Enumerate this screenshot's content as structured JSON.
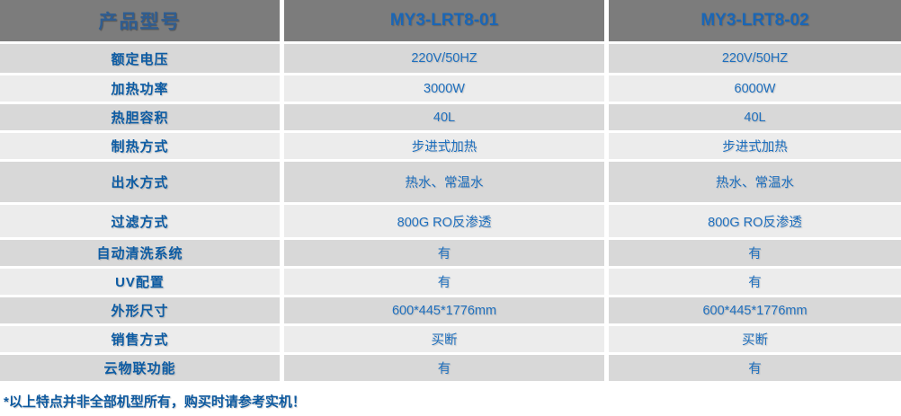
{
  "table": {
    "header": {
      "product_model_label": "产品型号",
      "model_1": "MY3-LRT8-01",
      "model_2": "MY3-LRT8-02"
    },
    "rows": [
      {
        "label": "额定电压",
        "v1": "220V/50HZ",
        "v2": "220V/50HZ"
      },
      {
        "label": "加热功率",
        "v1": "3000W",
        "v2": "6000W"
      },
      {
        "label": "热胆容积",
        "v1": "40L",
        "v2": "40L"
      },
      {
        "label": "制热方式",
        "v1": "步进式加热",
        "v2": "步进式加热"
      },
      {
        "label": "出水方式",
        "v1": "热水、常温水",
        "v2": "热水、常温水"
      },
      {
        "label": "过滤方式",
        "v1": "800G RO反渗透",
        "v2": "800G RO反渗透"
      },
      {
        "label": "自动清洗系统",
        "v1": "有",
        "v2": "有"
      },
      {
        "label": "UV配置",
        "v1": "有",
        "v2": "有"
      },
      {
        "label": "外形尺寸",
        "v1": "600*445*1776mm",
        "v2": "600*445*1776mm"
      },
      {
        "label": "销售方式",
        "v1": "买断",
        "v2": "买断"
      },
      {
        "label": "云物联功能",
        "v1": "有",
        "v2": "有"
      }
    ],
    "footnote": "*以上特点并非全部机型所有，购买时请参考实机！"
  },
  "colors": {
    "header_bg": "#7c7c7c",
    "row_dark_bg": "#d8d8d8",
    "row_light_bg": "#ececec",
    "model_text": "#1a66b6",
    "label_text": "#0d5ca4",
    "value_text": "#1e6fbe",
    "footnote_text": "#0e5aa0"
  }
}
